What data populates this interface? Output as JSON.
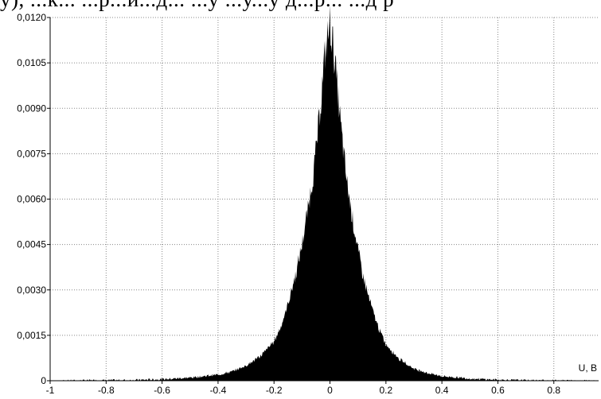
{
  "header_fragment": "у), ...к... ...р...и...д... ...у ...у...у д...р... ...д р",
  "chart_data": {
    "type": "area",
    "title": "",
    "xlabel": "U, B",
    "ylabel": "",
    "xlim": [
      -1,
      0.96
    ],
    "ylim": [
      0,
      0.012
    ],
    "x_ticks": [
      "-1",
      "-0.8",
      "-0.6",
      "-0.4",
      "-0.2",
      "0",
      "0.2",
      "0.4",
      "0.6",
      "0.8"
    ],
    "x_tick_values": [
      -1,
      -0.8,
      -0.6,
      -0.4,
      -0.2,
      0,
      0.2,
      0.4,
      0.6,
      0.8
    ],
    "y_ticks": [
      "0",
      "0,0015",
      "0,0030",
      "0,0045",
      "0,0060",
      "0,0075",
      "0,0090",
      "0,0105",
      "0,0120"
    ],
    "y_tick_values": [
      0,
      0.0015,
      0.003,
      0.0045,
      0.006,
      0.0075,
      0.009,
      0.0105,
      0.012
    ],
    "grid": true,
    "fill_color": "#000000",
    "series": [
      {
        "x": [
          -0.96,
          -0.7,
          -0.6,
          -0.5,
          -0.4,
          -0.35,
          -0.3,
          -0.25,
          -0.2,
          -0.18,
          -0.16,
          -0.14,
          -0.12,
          -0.1,
          -0.08,
          -0.06,
          -0.05,
          -0.04,
          -0.03,
          -0.02,
          -0.01,
          0,
          0.01,
          0.02,
          0.03,
          0.04,
          0.05,
          0.06,
          0.08,
          0.1,
          0.12,
          0.14,
          0.16,
          0.18,
          0.2,
          0.25,
          0.3,
          0.35,
          0.4,
          0.5,
          0.6,
          0.7,
          0.96
        ],
        "y": [
          0,
          2e-05,
          5e-05,
          0.0001,
          0.0002,
          0.0003,
          0.0005,
          0.0008,
          0.0013,
          0.0017,
          0.0022,
          0.0029,
          0.0036,
          0.0045,
          0.0056,
          0.0068,
          0.0076,
          0.0085,
          0.0095,
          0.0106,
          0.0113,
          0.0118,
          0.0112,
          0.0103,
          0.0093,
          0.0083,
          0.0074,
          0.0066,
          0.0054,
          0.0043,
          0.0034,
          0.0027,
          0.0021,
          0.0016,
          0.0012,
          0.0007,
          0.0004,
          0.00025,
          0.00015,
          7e-05,
          3e-05,
          1e-05,
          0
        ]
      }
    ]
  }
}
